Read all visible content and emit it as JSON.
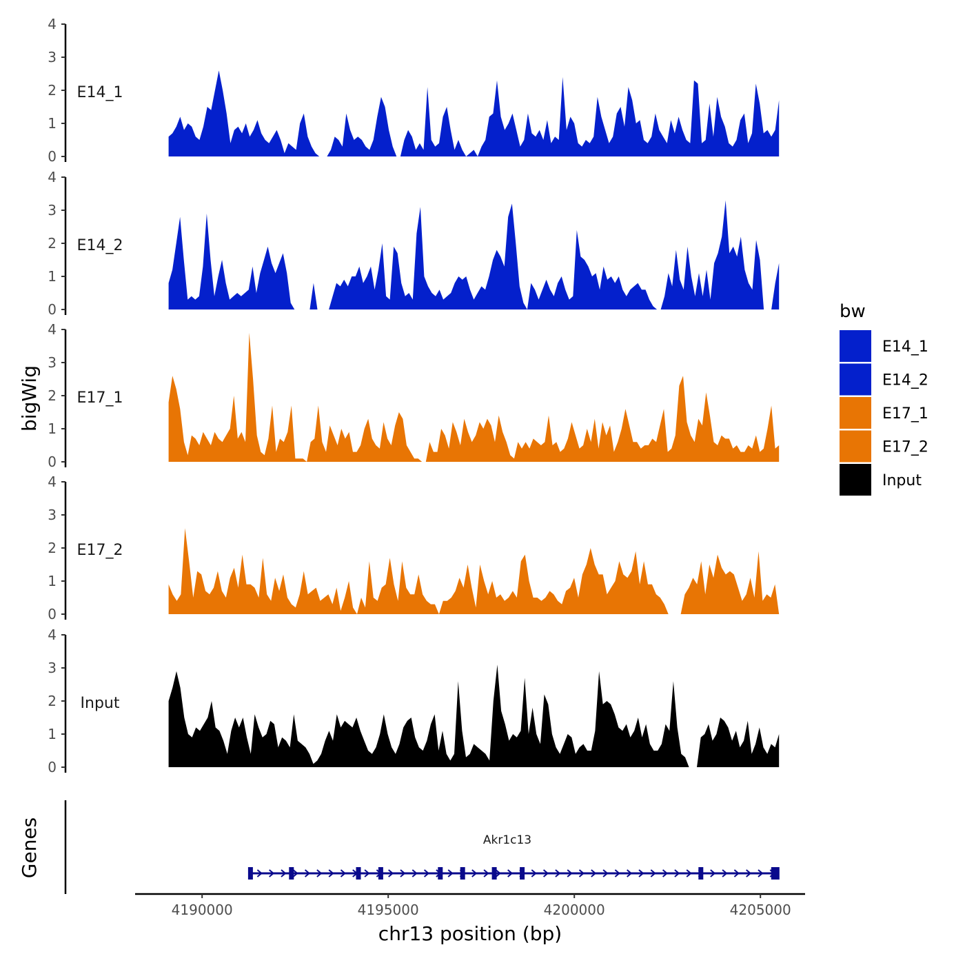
{
  "chart_data": {
    "type": "area",
    "chromosome": "chr13",
    "xlabel": "chr13 position (bp)",
    "ylabel": "bigWig",
    "genes_label": "Genes",
    "xlim": [
      4188200,
      4206200
    ],
    "x_ticks": [
      4190000,
      4195000,
      4200000,
      4205000
    ],
    "x_tick_labels": [
      "4190000",
      "4195000",
      "4200000",
      "4205000"
    ],
    "ylim": [
      0,
      4
    ],
    "y_ticks": [
      0,
      1,
      2,
      3,
      4
    ],
    "y_tick_labels": [
      "0",
      "1",
      "2",
      "3",
      "4"
    ],
    "x_range": [
      4189100,
      4205500
    ],
    "colors": {
      "E14": "#0420CC",
      "E17": "#E87504",
      "Input": "#000000",
      "gene": "#0A0A8C"
    },
    "legend": {
      "title": "bw",
      "entries": [
        {
          "label": "E14_1",
          "color": "#0420CC"
        },
        {
          "label": "E14_2",
          "color": "#0420CC"
        },
        {
          "label": "E17_1",
          "color": "#E87504"
        },
        {
          "label": "E17_2",
          "color": "#E87504"
        },
        {
          "label": "Input",
          "color": "#000000"
        }
      ]
    },
    "series": [
      {
        "name": "E14_1",
        "color": "#0420CC",
        "values": [
          0.6,
          0.7,
          0.9,
          1.2,
          0.8,
          1.0,
          0.9,
          0.6,
          0.5,
          0.9,
          1.5,
          1.4,
          2.0,
          2.6,
          2.0,
          1.3,
          0.4,
          0.8,
          0.9,
          0.7,
          1.0,
          0.6,
          0.8,
          1.1,
          0.7,
          0.5,
          0.4,
          0.6,
          0.8,
          0.5,
          0.1,
          0.4,
          0.3,
          0.2,
          1.0,
          1.3,
          0.6,
          0.3,
          0.1,
          0.0,
          0.0,
          0.0,
          0.2,
          0.6,
          0.5,
          0.3,
          1.3,
          0.8,
          0.5,
          0.6,
          0.5,
          0.3,
          0.2,
          0.5,
          1.2,
          1.8,
          1.5,
          0.8,
          0.3,
          0.0,
          0.0,
          0.5,
          0.8,
          0.6,
          0.2,
          0.4,
          0.2,
          2.1,
          0.5,
          0.3,
          0.4,
          1.2,
          1.5,
          0.8,
          0.2,
          0.5,
          0.2,
          0.0,
          0.1,
          0.2,
          0.0,
          0.3,
          0.5,
          1.2,
          1.3,
          2.3,
          1.2,
          0.8,
          1.0,
          1.3,
          0.8,
          0.3,
          0.5,
          1.3,
          0.7,
          0.6,
          0.8,
          0.5,
          1.1,
          0.4,
          0.6,
          0.5,
          2.4,
          0.8,
          1.2,
          1.0,
          0.4,
          0.3,
          0.5,
          0.4,
          0.6,
          1.8,
          1.2,
          0.8,
          0.4,
          0.6,
          1.3,
          1.5,
          0.9,
          2.1,
          1.7,
          1.0,
          1.1,
          0.5,
          0.4,
          0.6,
          1.3,
          0.8,
          0.6,
          0.4,
          1.1,
          0.7,
          1.2,
          0.8,
          0.5,
          0.4,
          2.3,
          2.2,
          0.4,
          0.5,
          1.6,
          0.6,
          1.8,
          1.2,
          0.9,
          0.4,
          0.3,
          0.5,
          1.1,
          1.3,
          0.4,
          0.7,
          2.2,
          1.6,
          0.7,
          0.8,
          0.6,
          0.8,
          1.7
        ]
      },
      {
        "name": "E14_2",
        "color": "#0420CC",
        "values": [
          0.8,
          1.2,
          2.0,
          2.8,
          1.5,
          0.3,
          0.4,
          0.3,
          0.4,
          1.3,
          2.9,
          1.5,
          0.4,
          1.0,
          1.5,
          0.8,
          0.3,
          0.4,
          0.5,
          0.4,
          0.5,
          0.6,
          1.3,
          0.5,
          1.1,
          1.5,
          1.9,
          1.4,
          1.1,
          1.4,
          1.7,
          1.1,
          0.2,
          0.0,
          0.0,
          0.0,
          0.0,
          0.0,
          0.8,
          0.0,
          0.0,
          0.0,
          0.0,
          0.4,
          0.8,
          0.7,
          0.9,
          0.7,
          1.0,
          1.0,
          1.3,
          0.8,
          1.0,
          1.3,
          0.6,
          1.2,
          2.0,
          0.4,
          0.3,
          1.9,
          1.7,
          0.8,
          0.4,
          0.5,
          0.3,
          2.3,
          3.1,
          1.0,
          0.7,
          0.5,
          0.4,
          0.6,
          0.3,
          0.4,
          0.5,
          0.8,
          1.0,
          0.9,
          1.0,
          0.6,
          0.3,
          0.5,
          0.7,
          0.6,
          1.0,
          1.5,
          1.8,
          1.6,
          1.3,
          2.8,
          3.2,
          2.0,
          0.7,
          0.2,
          0.0,
          0.8,
          0.6,
          0.3,
          0.6,
          0.9,
          0.6,
          0.4,
          0.8,
          1.0,
          0.6,
          0.3,
          0.4,
          2.4,
          1.6,
          1.5,
          1.3,
          1.0,
          1.1,
          0.6,
          1.3,
          0.9,
          1.0,
          0.8,
          1.0,
          0.6,
          0.4,
          0.6,
          0.7,
          0.8,
          0.6,
          0.6,
          0.3,
          0.1,
          0.0,
          0.0,
          0.4,
          1.1,
          0.7,
          1.8,
          0.9,
          0.6,
          1.9,
          1.0,
          0.4,
          1.1,
          0.4,
          1.2,
          0.3,
          1.4,
          1.7,
          2.2,
          3.3,
          1.7,
          1.9,
          1.6,
          2.2,
          1.2,
          0.8,
          0.6,
          2.1,
          1.5,
          0.0,
          0.0,
          0.0,
          0.8,
          1.4
        ]
      },
      {
        "name": "E17_1",
        "color": "#E87504",
        "values": [
          1.8,
          2.6,
          2.2,
          1.6,
          0.6,
          0.2,
          0.8,
          0.7,
          0.5,
          0.9,
          0.7,
          0.5,
          0.9,
          0.7,
          0.6,
          0.8,
          1.0,
          2.0,
          0.7,
          0.9,
          0.6,
          3.9,
          2.5,
          0.8,
          0.3,
          0.2,
          0.7,
          1.7,
          0.3,
          0.7,
          0.6,
          0.9,
          1.7,
          0.1,
          0.1,
          0.1,
          0.0,
          0.6,
          0.7,
          1.7,
          0.6,
          0.3,
          1.1,
          0.8,
          0.5,
          1.0,
          0.7,
          0.9,
          0.3,
          0.3,
          0.5,
          1.0,
          1.3,
          0.7,
          0.5,
          0.4,
          1.2,
          0.7,
          0.5,
          1.1,
          1.5,
          1.3,
          0.5,
          0.3,
          0.1,
          0.1,
          0.0,
          0.0,
          0.6,
          0.3,
          0.3,
          1.0,
          0.8,
          0.4,
          1.2,
          0.9,
          0.5,
          1.3,
          0.9,
          0.6,
          0.8,
          1.2,
          1.0,
          1.3,
          1.1,
          0.6,
          1.4,
          0.9,
          0.6,
          0.2,
          0.1,
          0.6,
          0.4,
          0.6,
          0.4,
          0.7,
          0.6,
          0.5,
          0.6,
          1.4,
          0.5,
          0.6,
          0.3,
          0.4,
          0.7,
          1.2,
          0.8,
          0.4,
          0.5,
          1.0,
          0.6,
          1.3,
          0.4,
          1.2,
          0.8,
          1.1,
          0.3,
          0.6,
          1.0,
          1.6,
          1.1,
          0.6,
          0.6,
          0.4,
          0.5,
          0.5,
          0.7,
          0.6,
          1.1,
          1.6,
          0.3,
          0.4,
          0.8,
          2.3,
          2.6,
          1.2,
          0.8,
          0.6,
          1.3,
          1.1,
          2.1,
          1.4,
          0.6,
          0.5,
          0.8,
          0.7,
          0.7,
          0.4,
          0.5,
          0.3,
          0.3,
          0.5,
          0.4,
          0.8,
          0.3,
          0.4,
          1.0,
          1.7,
          0.4,
          0.5
        ]
      },
      {
        "name": "E17_2",
        "color": "#E87504",
        "values": [
          0.9,
          0.6,
          0.4,
          0.6,
          2.6,
          1.6,
          0.5,
          1.3,
          1.2,
          0.7,
          0.6,
          0.8,
          1.3,
          0.7,
          0.5,
          1.1,
          1.4,
          0.8,
          1.8,
          0.9,
          0.9,
          0.8,
          0.5,
          1.7,
          0.6,
          0.4,
          1.1,
          0.7,
          1.2,
          0.5,
          0.3,
          0.2,
          0.6,
          1.3,
          0.6,
          0.7,
          0.8,
          0.4,
          0.5,
          0.6,
          0.3,
          0.8,
          0.1,
          0.5,
          1.0,
          0.2,
          0.0,
          0.5,
          0.2,
          1.6,
          0.5,
          0.4,
          0.8,
          0.9,
          1.7,
          0.9,
          0.4,
          1.6,
          0.8,
          0.6,
          0.6,
          1.2,
          0.6,
          0.4,
          0.3,
          0.3,
          0.0,
          0.4,
          0.4,
          0.5,
          0.7,
          1.1,
          0.8,
          1.5,
          0.8,
          0.2,
          1.5,
          1.0,
          0.6,
          1.0,
          0.5,
          0.6,
          0.4,
          0.5,
          0.7,
          0.5,
          1.6,
          1.8,
          1.0,
          0.5,
          0.5,
          0.4,
          0.5,
          0.7,
          0.6,
          0.4,
          0.3,
          0.7,
          0.8,
          1.1,
          0.5,
          1.2,
          1.5,
          2.0,
          1.5,
          1.2,
          1.2,
          0.6,
          0.8,
          1.0,
          1.6,
          1.2,
          1.1,
          1.3,
          1.9,
          0.9,
          1.6,
          0.9,
          0.9,
          0.6,
          0.5,
          0.3,
          0.0,
          0.0,
          0.0,
          0.0,
          0.6,
          0.8,
          1.1,
          0.9,
          1.6,
          0.6,
          1.5,
          1.1,
          1.8,
          1.4,
          1.2,
          1.3,
          1.2,
          0.8,
          0.4,
          0.6,
          1.1,
          0.5,
          1.9,
          0.4,
          0.6,
          0.5,
          0.9,
          0.0
        ]
      },
      {
        "name": "Input",
        "color": "#000000",
        "values": [
          2.0,
          2.4,
          2.9,
          2.4,
          1.5,
          1.0,
          0.9,
          1.2,
          1.1,
          1.3,
          1.5,
          2.0,
          1.2,
          1.1,
          0.8,
          0.4,
          1.1,
          1.5,
          1.2,
          1.5,
          0.9,
          0.4,
          1.6,
          1.2,
          0.9,
          1.0,
          1.4,
          1.3,
          0.6,
          0.9,
          0.8,
          0.6,
          1.6,
          0.8,
          0.7,
          0.6,
          0.4,
          0.1,
          0.2,
          0.4,
          0.8,
          1.1,
          0.8,
          1.6,
          1.2,
          1.4,
          1.3,
          1.2,
          1.5,
          1.1,
          0.8,
          0.5,
          0.4,
          0.6,
          1.0,
          1.6,
          1.0,
          0.6,
          0.4,
          0.7,
          1.2,
          1.4,
          1.5,
          0.9,
          0.6,
          0.5,
          0.8,
          1.3,
          1.6,
          0.5,
          1.1,
          0.4,
          0.2,
          0.4,
          2.6,
          1.1,
          0.3,
          0.4,
          0.7,
          0.6,
          0.5,
          0.4,
          0.2,
          2.0,
          3.1,
          1.7,
          1.3,
          0.8,
          1.0,
          0.9,
          1.1,
          2.7,
          1.0,
          1.8,
          1.0,
          0.7,
          2.2,
          1.9,
          1.0,
          0.6,
          0.4,
          0.7,
          1.0,
          0.9,
          0.4,
          0.6,
          0.7,
          0.5,
          0.5,
          1.1,
          2.9,
          1.9,
          2.0,
          1.9,
          1.6,
          1.2,
          1.1,
          1.3,
          0.9,
          1.1,
          1.5,
          0.9,
          1.3,
          0.7,
          0.5,
          0.5,
          0.7,
          1.3,
          1.1,
          2.6,
          1.2,
          0.4,
          0.3,
          0.0,
          0.0,
          0.0,
          0.9,
          1.0,
          1.3,
          0.8,
          1.0,
          1.5,
          1.4,
          1.2,
          0.8,
          1.1,
          0.6,
          0.8,
          1.4,
          0.4,
          0.7,
          1.2,
          0.6,
          0.4,
          0.7,
          0.6,
          1.0
        ]
      }
    ],
    "gene": {
      "name": "Akr1c13",
      "strand": "+",
      "start": 4191300,
      "end": 4205500,
      "exons": [
        4191300,
        4192400,
        4194200,
        4194800,
        4196400,
        4197000,
        4197850,
        4198600,
        4203400,
        4205400
      ]
    }
  }
}
